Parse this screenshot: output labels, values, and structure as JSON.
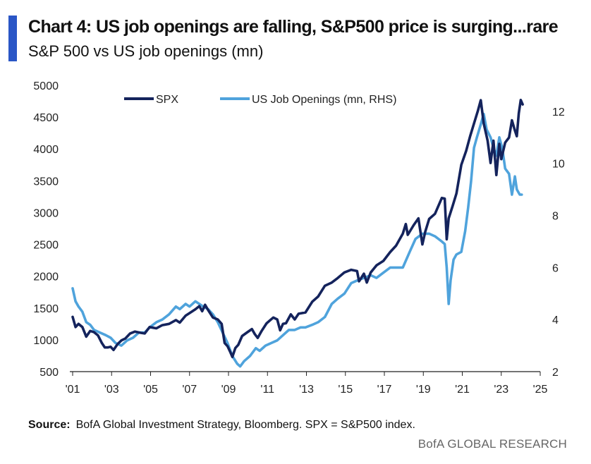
{
  "header": {
    "title": "Chart 4: US job openings are falling, S&P500 price is surging...rare",
    "subtitle": "S&P 500 vs US job openings (mn)"
  },
  "footer": {
    "source_label": "Source:",
    "source_text": "BofA Global Investment Strategy, Bloomberg. SPX = S&P500  index.",
    "brand": "BofA GLOBAL RESEARCH"
  },
  "colors": {
    "accent": "#2a56c6",
    "spx": "#14235c",
    "job_openings": "#4fa3dc",
    "axis": "#222222"
  },
  "chart_data": {
    "type": "line",
    "title": "S&P 500 vs US job openings (mn)",
    "legend_position": "top",
    "grid": false,
    "x_ticks": [
      "'01",
      "'03",
      "'05",
      "'07",
      "'09",
      "'11",
      "'13",
      "'15",
      "'17",
      "'19",
      "'21",
      "'23",
      "'25"
    ],
    "xlim": [
      2001,
      2025
    ],
    "y_left": {
      "lim": [
        500,
        5000
      ],
      "ticks": [
        500,
        1000,
        1500,
        2000,
        2500,
        3000,
        3500,
        4000,
        4500,
        5000
      ]
    },
    "y_right": {
      "lim": [
        2,
        13
      ],
      "ticks": [
        2,
        4,
        6,
        8,
        10,
        12
      ]
    },
    "series": [
      {
        "name": "SPX",
        "axis": "left",
        "points": [
          [
            2001.0,
            1360
          ],
          [
            2001.15,
            1200
          ],
          [
            2001.3,
            1250
          ],
          [
            2001.5,
            1200
          ],
          [
            2001.7,
            1050
          ],
          [
            2001.9,
            1140
          ],
          [
            2002.1,
            1120
          ],
          [
            2002.3,
            1070
          ],
          [
            2002.5,
            950
          ],
          [
            2002.65,
            880
          ],
          [
            2002.8,
            880
          ],
          [
            2002.95,
            890
          ],
          [
            2003.1,
            840
          ],
          [
            2003.3,
            930
          ],
          [
            2003.5,
            990
          ],
          [
            2003.7,
            1020
          ],
          [
            2003.95,
            1100
          ],
          [
            2004.2,
            1130
          ],
          [
            2004.5,
            1110
          ],
          [
            2004.7,
            1100
          ],
          [
            2004.95,
            1200
          ],
          [
            2005.3,
            1180
          ],
          [
            2005.6,
            1230
          ],
          [
            2005.95,
            1250
          ],
          [
            2006.3,
            1310
          ],
          [
            2006.5,
            1270
          ],
          [
            2006.8,
            1380
          ],
          [
            2007.0,
            1420
          ],
          [
            2007.3,
            1480
          ],
          [
            2007.5,
            1530
          ],
          [
            2007.65,
            1450
          ],
          [
            2007.8,
            1550
          ],
          [
            2007.95,
            1470
          ],
          [
            2008.2,
            1350
          ],
          [
            2008.45,
            1320
          ],
          [
            2008.65,
            1250
          ],
          [
            2008.8,
            950
          ],
          [
            2008.95,
            900
          ],
          [
            2009.1,
            800
          ],
          [
            2009.2,
            730
          ],
          [
            2009.35,
            870
          ],
          [
            2009.5,
            920
          ],
          [
            2009.7,
            1060
          ],
          [
            2009.95,
            1115
          ],
          [
            2010.2,
            1170
          ],
          [
            2010.35,
            1090
          ],
          [
            2010.5,
            1030
          ],
          [
            2010.7,
            1140
          ],
          [
            2010.95,
            1258
          ],
          [
            2011.3,
            1350
          ],
          [
            2011.5,
            1320
          ],
          [
            2011.65,
            1150
          ],
          [
            2011.8,
            1250
          ],
          [
            2011.95,
            1260
          ],
          [
            2012.2,
            1400
          ],
          [
            2012.4,
            1320
          ],
          [
            2012.6,
            1410
          ],
          [
            2012.95,
            1430
          ],
          [
            2013.3,
            1600
          ],
          [
            2013.6,
            1680
          ],
          [
            2013.95,
            1850
          ],
          [
            2014.3,
            1900
          ],
          [
            2014.6,
            1970
          ],
          [
            2014.95,
            2060
          ],
          [
            2015.3,
            2100
          ],
          [
            2015.6,
            2080
          ],
          [
            2015.7,
            1920
          ],
          [
            2015.95,
            2040
          ],
          [
            2016.1,
            1900
          ],
          [
            2016.3,
            2060
          ],
          [
            2016.6,
            2170
          ],
          [
            2016.95,
            2240
          ],
          [
            2017.3,
            2380
          ],
          [
            2017.6,
            2480
          ],
          [
            2017.95,
            2670
          ],
          [
            2018.1,
            2820
          ],
          [
            2018.2,
            2650
          ],
          [
            2018.5,
            2800
          ],
          [
            2018.75,
            2910
          ],
          [
            2018.95,
            2500
          ],
          [
            2019.1,
            2700
          ],
          [
            2019.3,
            2900
          ],
          [
            2019.6,
            2980
          ],
          [
            2019.95,
            3230
          ],
          [
            2020.1,
            3220
          ],
          [
            2020.2,
            2580
          ],
          [
            2020.3,
            2910
          ],
          [
            2020.5,
            3100
          ],
          [
            2020.7,
            3300
          ],
          [
            2020.95,
            3750
          ],
          [
            2021.2,
            3970
          ],
          [
            2021.4,
            4200
          ],
          [
            2021.6,
            4400
          ],
          [
            2021.8,
            4600
          ],
          [
            2021.95,
            4766
          ],
          [
            2022.1,
            4400
          ],
          [
            2022.3,
            4130
          ],
          [
            2022.45,
            3780
          ],
          [
            2022.6,
            4130
          ],
          [
            2022.75,
            3590
          ],
          [
            2022.9,
            4080
          ],
          [
            2023.0,
            3840
          ],
          [
            2023.2,
            4100
          ],
          [
            2023.4,
            4180
          ],
          [
            2023.55,
            4450
          ],
          [
            2023.7,
            4290
          ],
          [
            2023.8,
            4200
          ],
          [
            2023.9,
            4560
          ],
          [
            2024.0,
            4770
          ],
          [
            2024.1,
            4700
          ]
        ]
      },
      {
        "name": "US Job Openings (mn, RHS)",
        "axis": "right",
        "points": [
          [
            2001.0,
            5.2
          ],
          [
            2001.15,
            4.7
          ],
          [
            2001.3,
            4.5
          ],
          [
            2001.5,
            4.3
          ],
          [
            2001.7,
            3.9
          ],
          [
            2001.9,
            3.8
          ],
          [
            2002.1,
            3.6
          ],
          [
            2002.4,
            3.5
          ],
          [
            2002.7,
            3.4
          ],
          [
            2002.95,
            3.3
          ],
          [
            2003.2,
            3.1
          ],
          [
            2003.5,
            3.0
          ],
          [
            2003.8,
            3.2
          ],
          [
            2004.1,
            3.3
          ],
          [
            2004.4,
            3.5
          ],
          [
            2004.7,
            3.5
          ],
          [
            2004.95,
            3.7
          ],
          [
            2005.3,
            3.9
          ],
          [
            2005.6,
            4.0
          ],
          [
            2005.95,
            4.2
          ],
          [
            2006.3,
            4.5
          ],
          [
            2006.5,
            4.4
          ],
          [
            2006.8,
            4.6
          ],
          [
            2007.0,
            4.5
          ],
          [
            2007.3,
            4.7
          ],
          [
            2007.5,
            4.6
          ],
          [
            2007.7,
            4.5
          ],
          [
            2007.95,
            4.4
          ],
          [
            2008.2,
            4.2
          ],
          [
            2008.45,
            3.9
          ],
          [
            2008.7,
            3.5
          ],
          [
            2008.95,
            3.1
          ],
          [
            2009.2,
            2.6
          ],
          [
            2009.45,
            2.3
          ],
          [
            2009.6,
            2.2
          ],
          [
            2009.8,
            2.4
          ],
          [
            2010.1,
            2.6
          ],
          [
            2010.4,
            2.9
          ],
          [
            2010.6,
            2.8
          ],
          [
            2010.9,
            3.0
          ],
          [
            2011.2,
            3.1
          ],
          [
            2011.5,
            3.2
          ],
          [
            2011.8,
            3.4
          ],
          [
            2012.1,
            3.6
          ],
          [
            2012.4,
            3.6
          ],
          [
            2012.7,
            3.7
          ],
          [
            2012.95,
            3.7
          ],
          [
            2013.3,
            3.8
          ],
          [
            2013.6,
            3.9
          ],
          [
            2013.95,
            4.1
          ],
          [
            2014.3,
            4.6
          ],
          [
            2014.6,
            4.8
          ],
          [
            2014.95,
            5.0
          ],
          [
            2015.3,
            5.4
          ],
          [
            2015.6,
            5.5
          ],
          [
            2015.95,
            5.6
          ],
          [
            2016.3,
            5.7
          ],
          [
            2016.6,
            5.6
          ],
          [
            2016.95,
            5.8
          ],
          [
            2017.3,
            6.0
          ],
          [
            2017.6,
            6.0
          ],
          [
            2017.95,
            6.0
          ],
          [
            2018.3,
            6.6
          ],
          [
            2018.6,
            7.1
          ],
          [
            2018.95,
            7.3
          ],
          [
            2019.3,
            7.3
          ],
          [
            2019.6,
            7.2
          ],
          [
            2019.95,
            7.0
          ],
          [
            2020.1,
            6.9
          ],
          [
            2020.2,
            6.0
          ],
          [
            2020.3,
            4.6
          ],
          [
            2020.4,
            5.5
          ],
          [
            2020.55,
            6.3
          ],
          [
            2020.7,
            6.5
          ],
          [
            2020.95,
            6.6
          ],
          [
            2021.15,
            7.4
          ],
          [
            2021.3,
            8.3
          ],
          [
            2021.45,
            9.3
          ],
          [
            2021.6,
            10.6
          ],
          [
            2021.75,
            11.0
          ],
          [
            2021.95,
            11.5
          ],
          [
            2022.1,
            11.9
          ],
          [
            2022.25,
            11.3
          ],
          [
            2022.45,
            11.0
          ],
          [
            2022.6,
            10.6
          ],
          [
            2022.75,
            10.3
          ],
          [
            2022.9,
            11.0
          ],
          [
            2023.05,
            10.6
          ],
          [
            2023.2,
            9.8
          ],
          [
            2023.4,
            9.6
          ],
          [
            2023.55,
            8.8
          ],
          [
            2023.7,
            9.5
          ],
          [
            2023.8,
            9.0
          ],
          [
            2023.95,
            8.8
          ],
          [
            2024.05,
            8.8
          ]
        ]
      }
    ]
  }
}
